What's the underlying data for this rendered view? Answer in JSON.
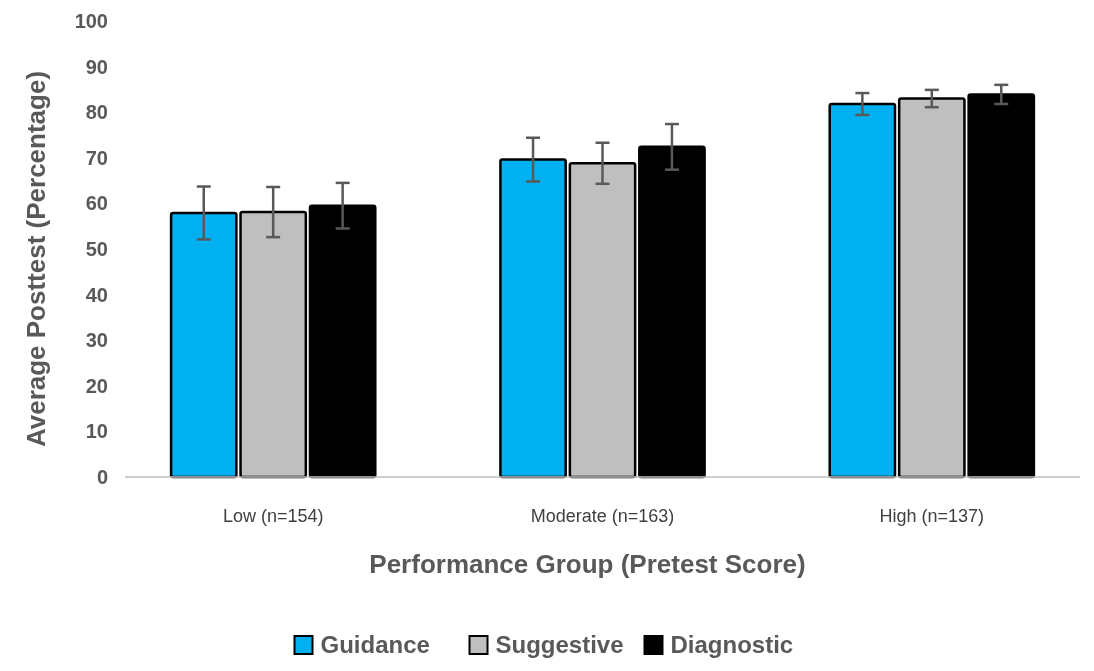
{
  "chart_data": {
    "type": "bar",
    "xlabel": "Performance Group (Pretest Score)",
    "ylabel": "Average Posttest (Percentage)",
    "categories": [
      "Low (n=154)",
      "Moderate (n=163)",
      "High (n=137)"
    ],
    "series": [
      {
        "name": "Guidance",
        "color": "#00b0f0",
        "values": [
          57.9,
          69.6,
          81.8
        ],
        "errors": [
          5.8,
          4.8,
          2.4
        ]
      },
      {
        "name": "Suggestive",
        "color": "#bfbfbf",
        "values": [
          58.1,
          68.8,
          83.0
        ],
        "errors": [
          5.5,
          4.5,
          1.9
        ]
      },
      {
        "name": "Diagnostic",
        "color": "#000000",
        "values": [
          59.5,
          72.4,
          83.9
        ],
        "errors": [
          5.0,
          5.0,
          2.1
        ]
      }
    ],
    "ylim": [
      0,
      100
    ],
    "yticks": [
      0,
      10,
      20,
      30,
      40,
      50,
      60,
      70,
      80,
      90,
      100
    ],
    "grid": false,
    "legend": "bottom"
  }
}
